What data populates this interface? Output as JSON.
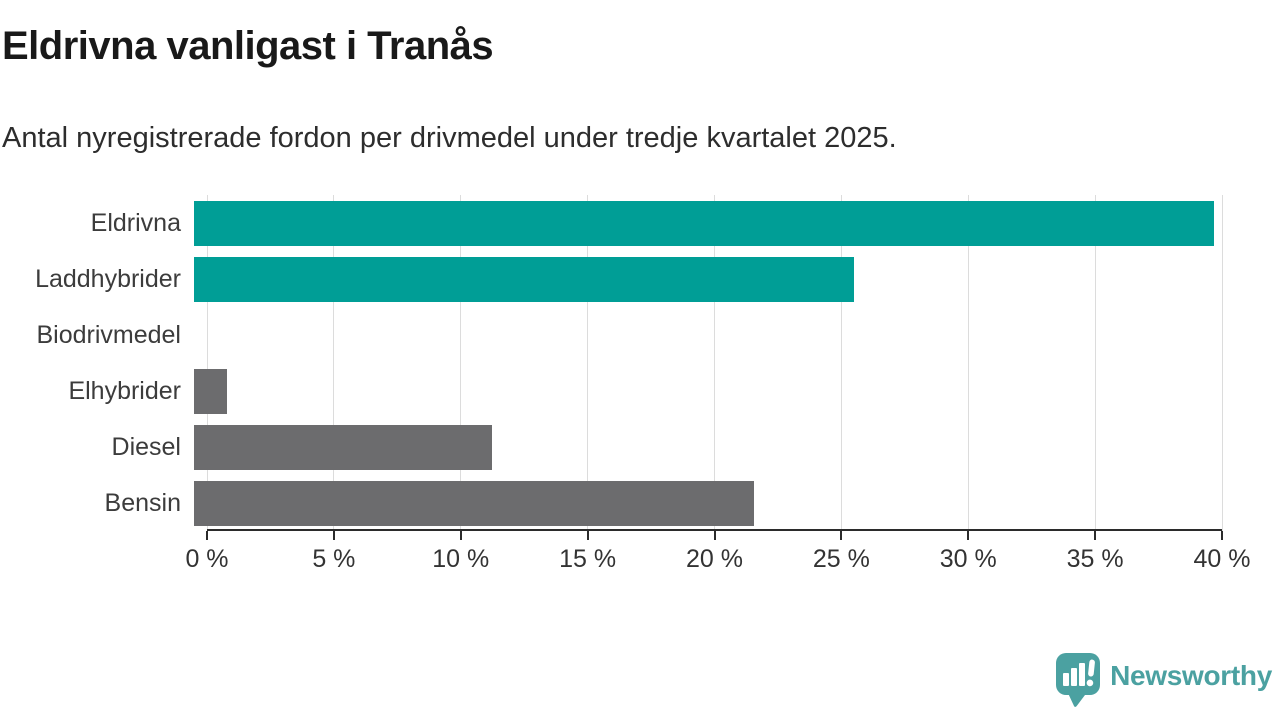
{
  "title": "Eldrivna vanligast i Tranås",
  "subtitle": "Antal nyregistrerade fordon per drivmedel under tredje kvartalet 2025.",
  "logo": {
    "text": "Newsworthy",
    "icon": "speech-bubble-with-bar-chart-and-exclamation"
  },
  "colors": {
    "highlight": "#009e96",
    "default_bar": "#6c6c6e",
    "gridline": "#dcdcdc",
    "axis": "#2b2b2b",
    "logo": "#4ba1a1",
    "title_text": "#191919",
    "label_text": "#3c3c3c"
  },
  "chart_data": {
    "type": "bar",
    "orientation": "horizontal",
    "title": "Eldrivna vanligast i Tranås",
    "subtitle": "Antal nyregistrerade fordon per drivmedel under tredje kvartalet 2025.",
    "categories": [
      "Eldrivna",
      "Laddhybrider",
      "Biodrivmedel",
      "Elhybrider",
      "Diesel",
      "Bensin"
    ],
    "values": [
      39.7,
      25.7,
      0,
      1.3,
      11.6,
      21.8
    ],
    "bar_colors": [
      "#009e96",
      "#009e96",
      "#6c6c6e",
      "#6c6c6e",
      "#6c6c6e",
      "#6c6c6e"
    ],
    "unit": "%",
    "xlabel": "",
    "ylabel": "",
    "xlim": [
      0,
      40
    ],
    "x_ticks": [
      0,
      5,
      10,
      15,
      20,
      25,
      30,
      35,
      40
    ],
    "x_tick_labels": [
      "0 %",
      "5 %",
      "10 %",
      "15 %",
      "20 %",
      "25 %",
      "30 %",
      "35 %",
      "40 %"
    ],
    "grid": "vertical",
    "legend": "none"
  }
}
